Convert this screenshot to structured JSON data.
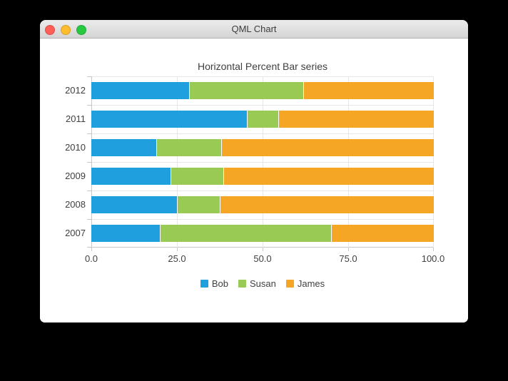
{
  "window": {
    "title": "QML Chart",
    "traffic_lights": [
      {
        "name": "close-button",
        "color": "#ff5f57"
      },
      {
        "name": "minimize-button",
        "color": "#febc2e"
      },
      {
        "name": "zoom-button",
        "color": "#28c840"
      }
    ]
  },
  "chart_data": {
    "type": "bar",
    "orientation": "horizontal",
    "stacked": "percent",
    "title": "Horizontal Percent Bar series",
    "categories": [
      "2012",
      "2011",
      "2010",
      "2009",
      "2008",
      "2007"
    ],
    "series": [
      {
        "name": "Bob",
        "color": "#209fdf",
        "values": [
          28.6,
          45.5,
          19.0,
          23.1,
          25.0,
          20.0
        ]
      },
      {
        "name": "Susan",
        "color": "#99ca53",
        "values": [
          33.3,
          9.1,
          19.0,
          15.4,
          12.5,
          50.0
        ]
      },
      {
        "name": "James",
        "color": "#f6a625",
        "values": [
          38.1,
          45.4,
          62.0,
          61.5,
          62.5,
          30.0
        ]
      }
    ],
    "x_axis": {
      "ticks": [
        "0.0",
        "25.0",
        "50.0",
        "75.0",
        "100.0"
      ],
      "min": 0,
      "max": 100
    },
    "y_axis": {
      "categories_top_to_bottom": [
        "2012",
        "2011",
        "2010",
        "2009",
        "2008",
        "2007"
      ]
    },
    "legend_position": "bottom",
    "grid": true,
    "colors": {
      "grid": "#e7e7e7",
      "axis": "#c8c8c8",
      "label": "#404040",
      "background": "#ffffff"
    }
  }
}
